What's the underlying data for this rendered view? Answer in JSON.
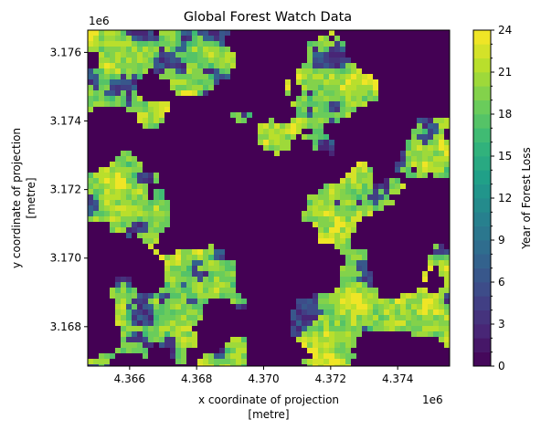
{
  "chart_data": {
    "type": "heatmap",
    "title": "Global Forest Watch Data",
    "xlabel_line1": "x coordinate of projection",
    "xlabel_line2": "[metre]",
    "ylabel_line1": "y coordinate of projection",
    "ylabel_line2": "[metre]",
    "x_offset_label": "1e6",
    "y_offset_label": "1e6",
    "x_ticks": [
      "4.366",
      "4.368",
      "4.370",
      "4.372",
      "4.374"
    ],
    "x_tick_values": [
      4.366,
      4.368,
      4.37,
      4.372,
      4.374
    ],
    "y_ticks": [
      "3.168",
      "3.170",
      "3.172",
      "3.174",
      "3.176"
    ],
    "y_tick_values": [
      3.168,
      3.17,
      3.172,
      3.174,
      3.176
    ],
    "xlim": [
      4.36475,
      4.37555
    ],
    "ylim": [
      3.16685,
      3.17665
    ],
    "colorbar": {
      "label": "Year of Forest Loss",
      "colormap": "viridis",
      "vmin": 0,
      "vmax": 24,
      "levels": 24,
      "tick_labels": [
        "0",
        "3",
        "6",
        "9",
        "12",
        "15",
        "18",
        "21",
        "24"
      ],
      "tick_values": [
        0,
        3,
        6,
        9,
        12,
        15,
        18,
        21,
        24
      ]
    },
    "background_color": "#440154",
    "grid": false
  }
}
